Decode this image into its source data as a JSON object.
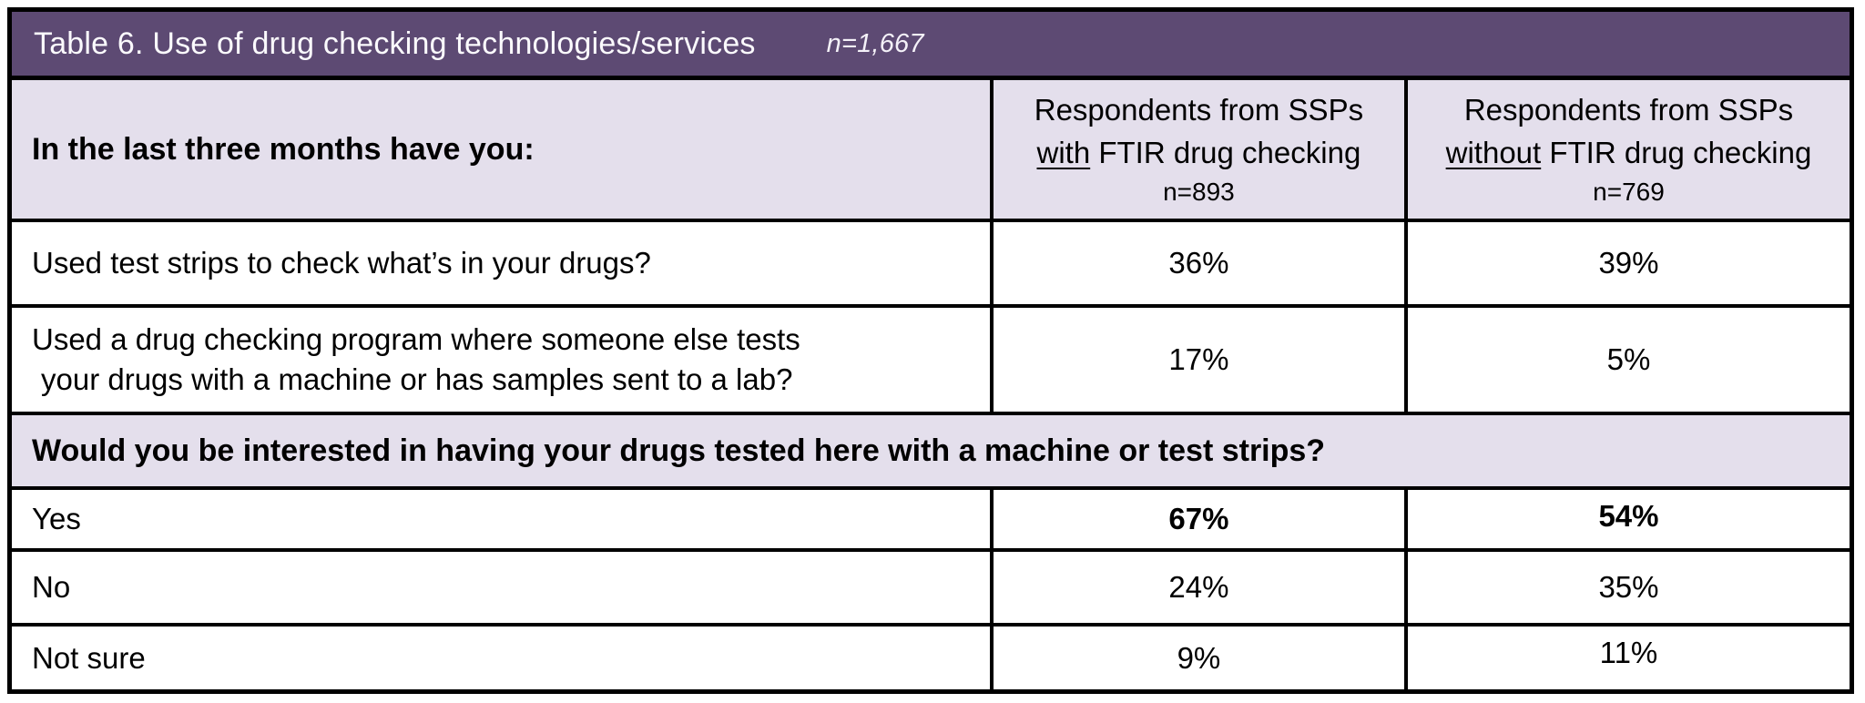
{
  "table": {
    "title": "Table 6. Use of drug checking technologies/services",
    "sample_size": "n=1,667",
    "columns": {
      "question_header": "In the last three months have you:",
      "with_ftir": {
        "line1": "Respondents from SSPs",
        "underlined_word": "with",
        "line2_rest": " FTIR drug checking",
        "n": "n=893"
      },
      "without_ftir": {
        "line1": "Respondents from SSPs",
        "underlined_word": "without",
        "line2_rest": " FTIR drug checking",
        "n": "n=769"
      }
    },
    "behavior_rows": [
      {
        "question": "Used test strips to check what’s in your drugs?",
        "with_ftir": "36%",
        "without_ftir": "39%"
      },
      {
        "question_line1": "Used a drug checking program where someone else tests",
        "question_line2": "your drugs with a machine or has samples sent to a lab?",
        "with_ftir": "17%",
        "without_ftir": "5%"
      }
    ],
    "interest_question": "Would you be interested in having your drugs tested here with a machine or test strips?",
    "interest_rows": [
      {
        "answer": "Yes",
        "with_ftir": "67%",
        "without_ftir": "54%"
      },
      {
        "answer": "No",
        "with_ftir": "24%",
        "without_ftir": "35%"
      },
      {
        "answer": "Not sure",
        "with_ftir": "9%",
        "without_ftir": "11%"
      }
    ],
    "colors": {
      "title_bar_background": "#5d4a73",
      "band_background": "#e4dfec",
      "border": "#000000",
      "title_text": "#fbfafd"
    }
  },
  "chart_data": {
    "type": "table",
    "title": "Table 6. Use of drug checking technologies/services (n=1,667)",
    "columns": [
      "Question",
      "Respondents from SSPs with FTIR drug checking (n=893)",
      "Respondents from SSPs without FTIR drug checking (n=769)"
    ],
    "rows": [
      [
        "Used test strips to check what’s in your drugs?",
        "36%",
        "39%"
      ],
      [
        "Used a drug checking program where someone else tests your drugs with a machine or has samples sent to a lab?",
        "17%",
        "5%"
      ],
      [
        "Interested in having drugs tested here — Yes",
        "67%",
        "54%"
      ],
      [
        "Interested in having drugs tested here — No",
        "24%",
        "35%"
      ],
      [
        "Interested in having drugs tested here — Not sure",
        "9%",
        "11%"
      ]
    ]
  }
}
